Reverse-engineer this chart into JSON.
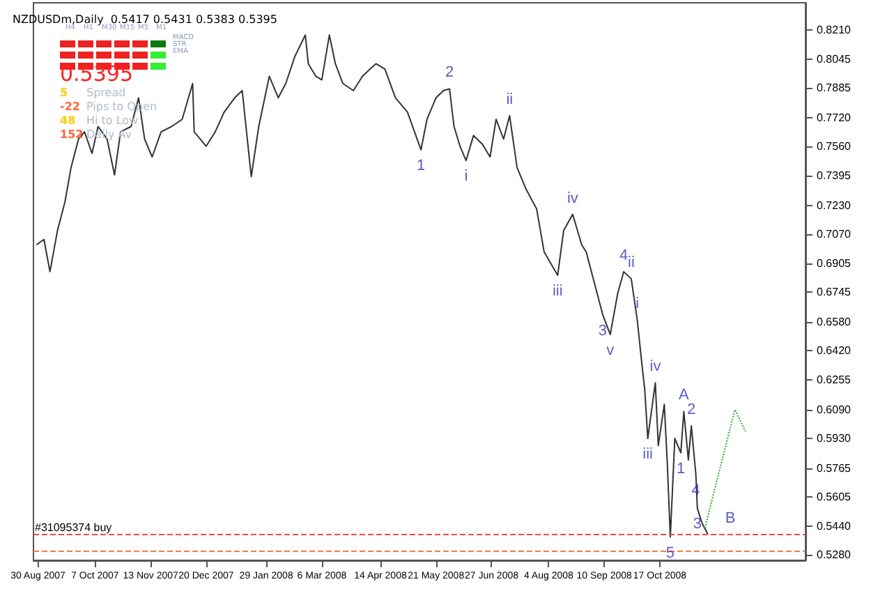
{
  "chart_data": {
    "type": "line",
    "title": "NZDUSDm,Daily  0.5417 0.5431 0.5383 0.5395",
    "grid": false,
    "marker": "none",
    "line_style": "solid",
    "xlim": [
      "2007-08-27",
      "2009-01-22"
    ],
    "xticks": [
      {
        "value": "2007-08-30",
        "label": "30 Aug 2007"
      },
      {
        "value": "2007-10-07",
        "label": "7 Oct 2007"
      },
      {
        "value": "2007-11-13",
        "label": "13 Nov 2007"
      },
      {
        "value": "2007-12-20",
        "label": "20 Dec 2007"
      },
      {
        "value": "2008-01-29",
        "label": "29 Jan 2008"
      },
      {
        "value": "2008-03-06",
        "label": "6 Mar 2008"
      },
      {
        "value": "2008-04-14",
        "label": "14 Apr 2008"
      },
      {
        "value": "2008-05-21",
        "label": "21 May 2008"
      },
      {
        "value": "2008-06-27",
        "label": "27 Jun 2008"
      },
      {
        "value": "2008-08-04",
        "label": "4 Aug 2008"
      },
      {
        "value": "2008-09-10",
        "label": "10 Sep 2008"
      },
      {
        "value": "2008-10-17",
        "label": "17 Oct 2008"
      }
    ],
    "ylim": [
      0.525,
      0.836
    ],
    "yticks": [
      {
        "value": 0.528,
        "label": "0.5280"
      },
      {
        "value": 0.544,
        "label": "0.5440"
      },
      0.5605,
      0.5765,
      {
        "value": 0.593,
        "label": "0.5930"
      },
      {
        "value": 0.609,
        "label": "0.6090"
      },
      0.6255,
      {
        "value": 0.642,
        "label": "0.6420"
      },
      {
        "value": 0.658,
        "label": "0.6580"
      },
      0.6745,
      0.6905,
      {
        "value": 0.707,
        "label": "0.7070"
      },
      {
        "value": 0.723,
        "label": "0.7230"
      },
      0.7395,
      {
        "value": 0.756,
        "label": "0.7560"
      },
      {
        "value": 0.772,
        "label": "0.7720"
      },
      0.7885,
      0.8045,
      {
        "value": 0.821,
        "label": "0.8210"
      }
    ],
    "series": [
      {
        "color": "#333333",
        "x": [
          "2007-08-29",
          "2007-09-03",
          "2007-09-07",
          "2007-09-12",
          "2007-09-17",
          "2007-09-21",
          "2007-09-26",
          "2007-09-30",
          "2007-10-05",
          "2007-10-09",
          "2007-10-15",
          "2007-10-20",
          "2007-10-24",
          "2007-10-31",
          "2007-11-05",
          "2007-11-09",
          "2007-11-14",
          "2007-11-20",
          "2007-11-27",
          "2007-12-04",
          "2007-12-11",
          "2007-12-12",
          "2007-12-20",
          "2007-12-26",
          "2008-01-01",
          "2008-01-08",
          "2008-01-13",
          "2008-01-19",
          "2008-01-24",
          "2008-01-31",
          "2008-02-06",
          "2008-02-11",
          "2008-02-17",
          "2008-02-24",
          "2008-02-26",
          "2008-03-02",
          "2008-03-06",
          "2008-03-11",
          "2008-03-15",
          "2008-03-20",
          "2008-03-27",
          "2008-04-02",
          "2008-04-07",
          "2008-04-11",
          "2008-04-17",
          "2008-04-24",
          "2008-05-02",
          "2008-05-11",
          "2008-05-15",
          "2008-05-21",
          "2008-05-26",
          "2008-05-30",
          "2008-06-02",
          "2008-06-06",
          "2008-06-10",
          "2008-06-15",
          "2008-06-21",
          "2008-06-26",
          "2008-06-30",
          "2008-07-05",
          "2008-07-09",
          "2008-07-14",
          "2008-07-20",
          "2008-07-27",
          "2008-08-01",
          "2008-08-10",
          "2008-08-14",
          "2008-08-20",
          "2008-08-26",
          "2008-08-29",
          "2008-09-04",
          "2008-09-09",
          "2008-09-14",
          "2008-09-19",
          "2008-09-23",
          "2008-09-28",
          "2008-10-02",
          "2008-10-05",
          "2008-10-07",
          "2008-10-09",
          "2008-10-14",
          "2008-10-16",
          "2008-10-20",
          "2008-10-22",
          "2008-10-24",
          "2008-10-27",
          "2008-10-31",
          "2008-11-02",
          "2008-11-05",
          "2008-11-07",
          "2008-11-10",
          "2008-11-11",
          "2008-11-14",
          "2008-11-18"
        ],
        "values": [
          0.701,
          0.704,
          0.686,
          0.709,
          0.725,
          0.744,
          0.76,
          0.764,
          0.752,
          0.767,
          0.76,
          0.74,
          0.764,
          0.767,
          0.783,
          0.76,
          0.75,
          0.764,
          0.767,
          0.771,
          0.791,
          0.764,
          0.756,
          0.764,
          0.775,
          0.783,
          0.787,
          0.739,
          0.767,
          0.795,
          0.783,
          0.791,
          0.806,
          0.818,
          0.802,
          0.795,
          0.793,
          0.818,
          0.802,
          0.791,
          0.787,
          0.795,
          0.799,
          0.802,
          0.799,
          0.783,
          0.775,
          0.754,
          0.771,
          0.783,
          0.787,
          0.788,
          0.767,
          0.756,
          0.748,
          0.762,
          0.757,
          0.75,
          0.771,
          0.76,
          0.773,
          0.744,
          0.732,
          0.721,
          0.697,
          0.684,
          0.709,
          0.718,
          0.701,
          0.697,
          0.678,
          0.662,
          0.651,
          0.674,
          0.686,
          0.682,
          0.659,
          0.635,
          0.62,
          0.593,
          0.624,
          0.589,
          0.612,
          0.579,
          0.538,
          0.593,
          0.585,
          0.608,
          0.581,
          0.6,
          0.573,
          0.554,
          0.546,
          0.5395
        ]
      },
      {
        "color": "#33aa33",
        "line_style": "dotted",
        "x": [
          "2008-11-16",
          "2008-12-06",
          "2008-12-13"
        ],
        "values": [
          0.543,
          0.609,
          0.597
        ]
      }
    ],
    "ref_lines": [
      {
        "axis": "y",
        "value": 0.5395,
        "label": "#31095374 buy",
        "color": "#ff4444",
        "line_style": "dashed"
      },
      {
        "axis": "y",
        "value": 0.53,
        "color": "#ff7744",
        "line_style": "dashed"
      }
    ],
    "annotations": [
      "H4",
      "H1",
      "M30",
      "M15",
      "M5",
      "M1",
      "MACD",
      "STR",
      "EMA",
      "0.5395",
      "5",
      "Spread",
      "-22",
      "Pips to Open",
      "48",
      "Hi to Low",
      "152",
      "Daily Av",
      {
        "text": "1",
        "x": "2008-05-11",
        "y": 0.754
      },
      {
        "text": "2",
        "x": "2008-05-30",
        "y": 0.788
      },
      {
        "text": "i",
        "x": "2008-06-10",
        "y": 0.748
      },
      {
        "text": "ii",
        "x": "2008-07-09",
        "y": 0.773
      },
      {
        "text": "iii",
        "x": "2008-08-10",
        "y": 0.684
      },
      {
        "text": "iv",
        "x": "2008-08-20",
        "y": 0.718
      },
      {
        "text": "4",
        "x": "2008-09-23",
        "y": 0.686
      },
      {
        "text": "ii",
        "x": "2008-09-28",
        "y": 0.682
      },
      {
        "text": "i",
        "x": "2008-10-02",
        "y": 0.659
      },
      {
        "text": "3",
        "x": "2008-09-09",
        "y": 0.662
      },
      {
        "text": "v",
        "x": "2008-09-14",
        "y": 0.651
      },
      {
        "text": "iv",
        "x": "2008-10-14",
        "y": 0.624
      },
      {
        "text": "iii",
        "x": "2008-10-09",
        "y": 0.593
      },
      {
        "text": "5",
        "x": "2008-10-24",
        "y": 0.538
      },
      {
        "text": "A",
        "x": "2008-11-02",
        "y": 0.608
      },
      {
        "text": "2",
        "x": "2008-11-07",
        "y": 0.6
      },
      {
        "text": "1",
        "x": "2008-10-31",
        "y": 0.585
      },
      {
        "text": "4",
        "x": "2008-11-10",
        "y": 0.573
      },
      {
        "text": "3",
        "x": "2008-11-11",
        "y": 0.554
      },
      {
        "text": "B",
        "x": "2008-12-03",
        "y": 0.5395
      }
    ]
  }
}
